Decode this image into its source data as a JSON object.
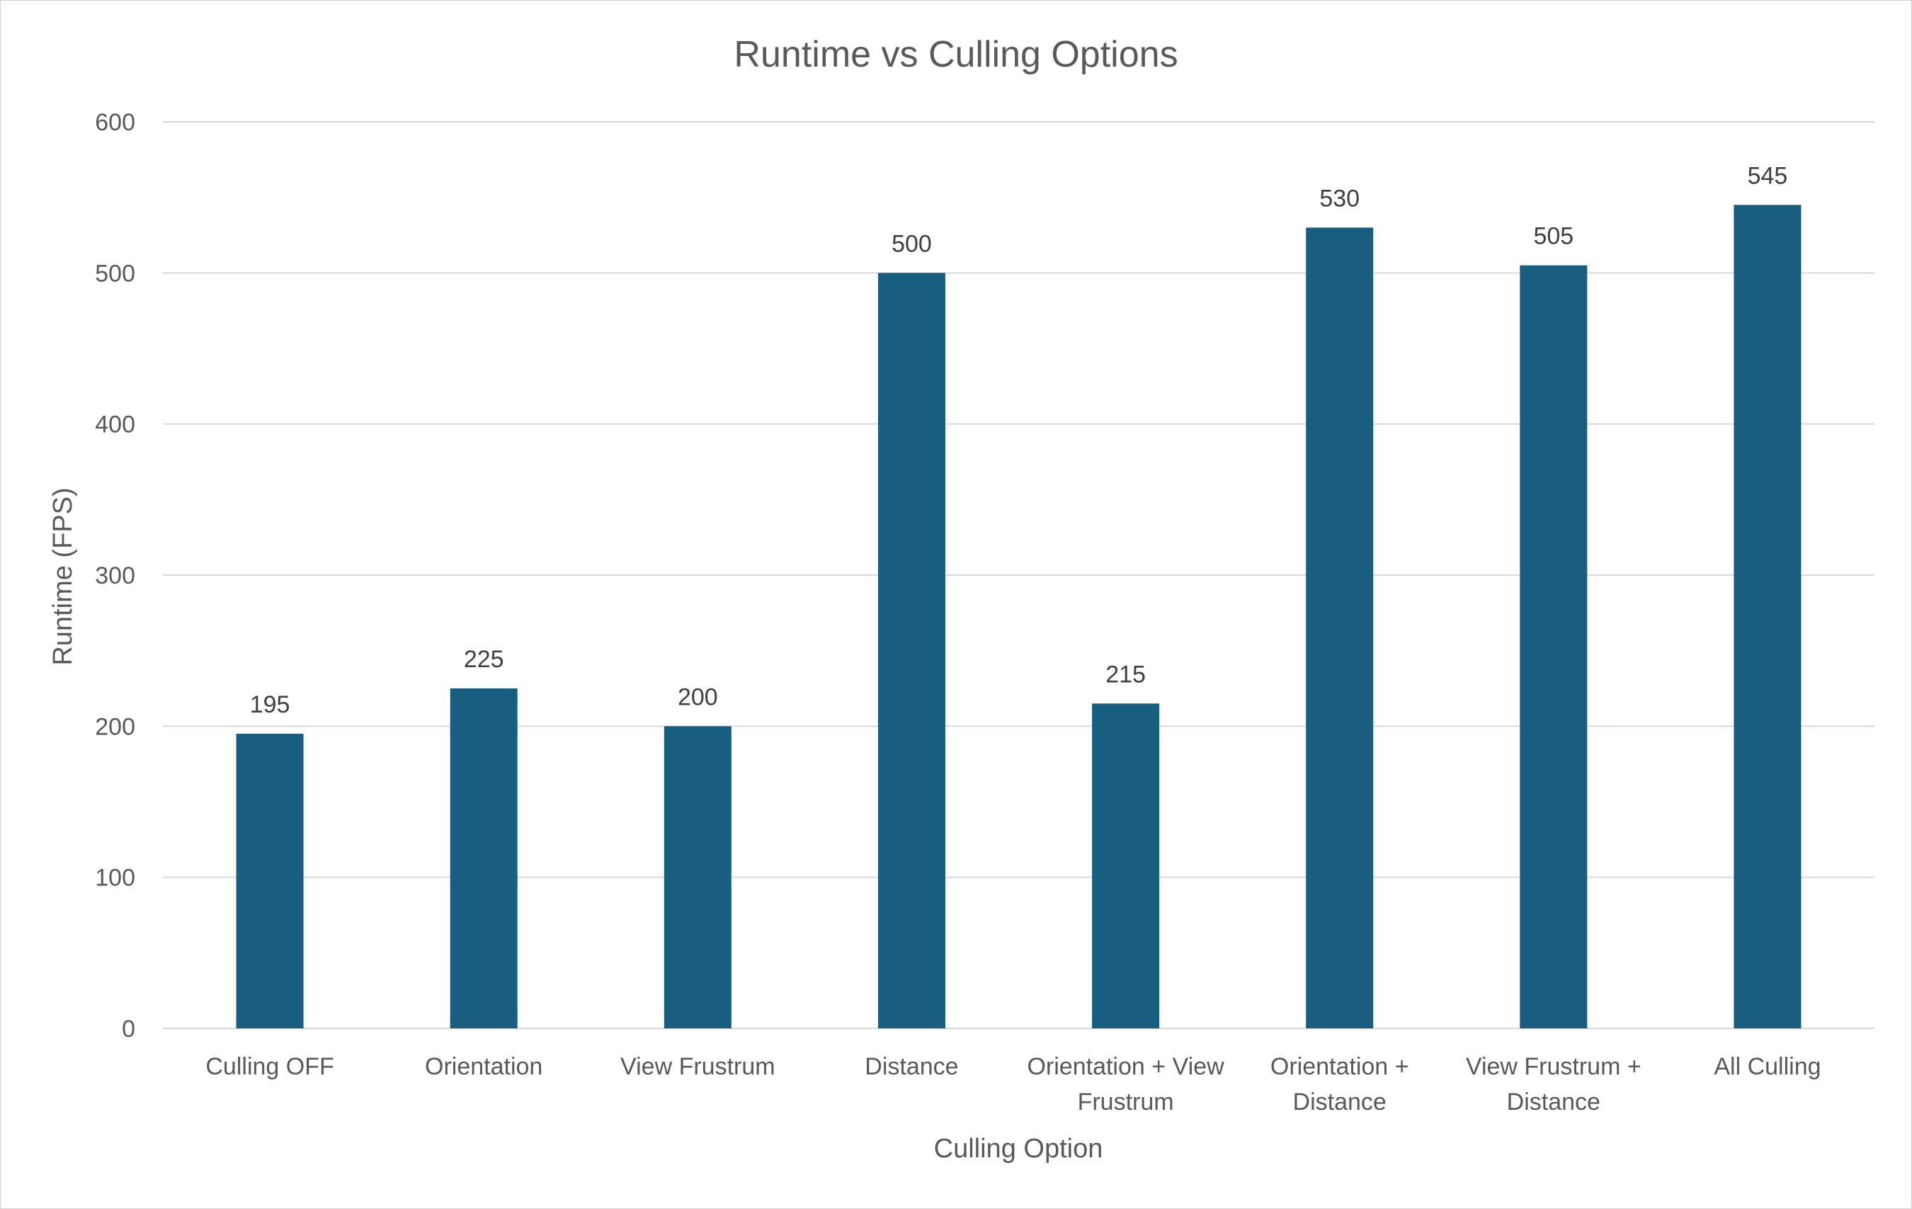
{
  "chart_data": {
    "type": "bar",
    "title": "Runtime vs Culling Options",
    "xlabel": "Culling Option",
    "ylabel": "Runtime (FPS)",
    "ylim": [
      0,
      600
    ],
    "yticks": [
      0,
      100,
      200,
      300,
      400,
      500,
      600
    ],
    "grid": true,
    "legend": "none",
    "bar_color": "#175e81",
    "categories": [
      [
        "Culling OFF"
      ],
      [
        "Orientation"
      ],
      [
        "View Frustrum"
      ],
      [
        "Distance"
      ],
      [
        "Orientation + View",
        "Frustrum"
      ],
      [
        "Orientation +",
        "Distance"
      ],
      [
        "View Frustrum +",
        "Distance"
      ],
      [
        "All Culling"
      ]
    ],
    "values": [
      195,
      225,
      200,
      500,
      215,
      530,
      505,
      545
    ]
  }
}
